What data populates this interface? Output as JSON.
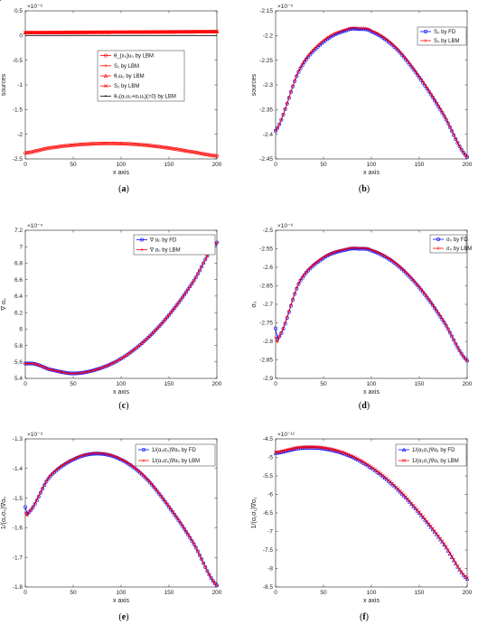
{
  "chart_data": [
    {
      "panel": "a",
      "caption": "(a)",
      "type": "line",
      "multiplier": "×10⁻⁶",
      "xlabel": "x axis",
      "ylabel": "sources",
      "xlim": [
        0,
        200
      ],
      "ylim": [
        -2.5,
        0.5
      ],
      "xticks": [
        "0",
        "50",
        "100",
        "150",
        "200"
      ],
      "yticks": [
        "-2.5",
        "-2",
        "-1.5",
        "-1",
        "-0.5",
        "0",
        "0.5"
      ],
      "legend_position": "center",
      "series": [
        {
          "name": "θ_{x₀}u₀ by LBM",
          "color": "#ff0000",
          "marker": "circle",
          "x": [
            0,
            25,
            50,
            75,
            100,
            125,
            150,
            175,
            200
          ],
          "y": [
            -2.38,
            -2.28,
            -2.22,
            -2.19,
            -2.19,
            -2.22,
            -2.28,
            -2.36,
            -2.44
          ]
        },
        {
          "name": "S₁ by LBM",
          "color": "#ff0000",
          "marker": "plus",
          "x": [
            0,
            50,
            100,
            150,
            200
          ],
          "y": [
            0.06,
            0.065,
            0.07,
            0.075,
            0.08
          ]
        },
        {
          "name": "θ₀u₀ by LBM",
          "color": "#ff0000",
          "marker": "triangle",
          "x": [
            0,
            50,
            100,
            150,
            200
          ],
          "y": [
            0.06,
            0.065,
            0.07,
            0.075,
            0.08
          ]
        },
        {
          "name": "S₂ by LBM",
          "color": "#ff0000",
          "marker": "x",
          "x": [
            0,
            50,
            100,
            150,
            200
          ],
          "y": [
            0.06,
            0.065,
            0.07,
            0.075,
            0.08
          ]
        },
        {
          "name": "θ₀(α₀u₀+α₁u₁)(=0) by LBM",
          "color": "#000000",
          "marker": "dot",
          "x": [
            0,
            200
          ],
          "y": [
            0,
            0
          ]
        }
      ]
    },
    {
      "panel": "b",
      "caption": "(b)",
      "type": "line",
      "multiplier": "×10⁻⁶",
      "xlabel": "x axis",
      "ylabel": "sources",
      "xlim": [
        0,
        200
      ],
      "ylim": [
        -2.45,
        -2.15
      ],
      "xticks": [
        "0",
        "50",
        "100",
        "150",
        "200"
      ],
      "yticks": [
        "-2.45",
        "-2.4",
        "-2.35",
        "-2.3",
        "-2.25",
        "-2.2",
        "-2.15"
      ],
      "legend_position": "top-right",
      "series": [
        {
          "name": "S₀ by FD",
          "color": "#0000ff",
          "marker": "circle",
          "x": [
            0,
            25,
            50,
            75,
            87,
            100,
            125,
            150,
            175,
            200
          ],
          "y": [
            -2.393,
            -2.27,
            -2.213,
            -2.189,
            -2.187,
            -2.192,
            -2.225,
            -2.285,
            -2.36,
            -2.446
          ]
        },
        {
          "name": "S₀ by LBM",
          "color": "#ff0000",
          "marker": "plus",
          "x": [
            0,
            25,
            50,
            75,
            87,
            100,
            125,
            150,
            175,
            200
          ],
          "y": [
            -2.393,
            -2.268,
            -2.21,
            -2.187,
            -2.185,
            -2.19,
            -2.223,
            -2.283,
            -2.358,
            -2.446
          ]
        }
      ]
    },
    {
      "panel": "c",
      "caption": "(c)",
      "type": "line",
      "multiplier": "×10⁻⁵",
      "xlabel": "x axis",
      "ylabel": "∇ α₀",
      "xlim": [
        0,
        200
      ],
      "ylim": [
        5.4,
        7.2
      ],
      "xticks": [
        "0",
        "50",
        "100",
        "150",
        "200"
      ],
      "yticks": [
        "5.4",
        "5.6",
        "5.8",
        "6",
        "6.2",
        "6.4",
        "6.6",
        "6.8",
        "7",
        "7.2"
      ],
      "legend_position": "top-right",
      "series": [
        {
          "name": "∇ α₀ by FD",
          "color": "#0000ff",
          "marker": "circle",
          "x": [
            0,
            10,
            25,
            50,
            75,
            100,
            125,
            150,
            175,
            200
          ],
          "y": [
            5.58,
            5.575,
            5.51,
            5.46,
            5.51,
            5.64,
            5.86,
            6.17,
            6.57,
            7.05
          ]
        },
        {
          "name": "∇ α₀ by LBM",
          "color": "#ff0000",
          "marker": "plus",
          "x": [
            0,
            10,
            25,
            50,
            75,
            100,
            125,
            150,
            175,
            200
          ],
          "y": [
            5.58,
            5.575,
            5.51,
            5.46,
            5.51,
            5.64,
            5.86,
            6.17,
            6.57,
            7.05
          ]
        }
      ]
    },
    {
      "panel": "d",
      "caption": "(d)",
      "type": "line",
      "multiplier": "×10⁻⁶",
      "xlabel": "x axis",
      "ylabel": "σ₀",
      "xlim": [
        0,
        200
      ],
      "ylim": [
        -2.9,
        -2.5
      ],
      "xticks": [
        "0",
        "50",
        "100",
        "150",
        "200"
      ],
      "yticks": [
        "-2.9",
        "-2.85",
        "-2.8",
        "-2.75",
        "-2.7",
        "-2.65",
        "-2.6",
        "-2.55",
        "-2.5"
      ],
      "legend_position": "top-right",
      "series": [
        {
          "name": "σ₀ by FD",
          "color": "#0000ff",
          "marker": "circle",
          "x": [
            0,
            3,
            25,
            50,
            75,
            87,
            100,
            125,
            150,
            175,
            200
          ],
          "y": [
            -2.765,
            -2.79,
            -2.64,
            -2.575,
            -2.552,
            -2.55,
            -2.555,
            -2.59,
            -2.655,
            -2.745,
            -2.852
          ]
        },
        {
          "name": "σ₀ by LBM",
          "color": "#ff0000",
          "marker": "plus",
          "x": [
            0,
            3,
            25,
            50,
            75,
            87,
            100,
            125,
            150,
            175,
            200
          ],
          "y": [
            -2.79,
            -2.79,
            -2.638,
            -2.573,
            -2.55,
            -2.548,
            -2.553,
            -2.588,
            -2.653,
            -2.743,
            -2.852
          ]
        }
      ]
    },
    {
      "panel": "e",
      "caption": "(e)",
      "type": "line",
      "multiplier": "×10⁻⁹",
      "xlabel": "x axis",
      "ylabel": "1/(α₀σ₀)∇α₀",
      "xlim": [
        0,
        200
      ],
      "ylim": [
        -1.8,
        -1.3
      ],
      "xticks": [
        "0",
        "50",
        "100",
        "150",
        "200"
      ],
      "yticks": [
        "-1.8",
        "-1.7",
        "-1.6",
        "-1.5",
        "-1.4",
        "-1.3"
      ],
      "legend_position": "top-right",
      "series": [
        {
          "name": "1/(α₀σ₀)∇α₀ by FD",
          "color": "#0000ff",
          "marker": "circle",
          "x": [
            0,
            3,
            25,
            50,
            75,
            100,
            125,
            150,
            175,
            200
          ],
          "y": [
            -1.53,
            -1.55,
            -1.43,
            -1.37,
            -1.35,
            -1.37,
            -1.43,
            -1.53,
            -1.65,
            -1.795
          ]
        },
        {
          "name": "1/(α₀σ₀)∇α₀ by LBM",
          "color": "#ff0000",
          "marker": "plus",
          "x": [
            0,
            3,
            25,
            50,
            75,
            100,
            125,
            150,
            175,
            200
          ],
          "y": [
            -1.55,
            -1.55,
            -1.428,
            -1.368,
            -1.348,
            -1.368,
            -1.428,
            -1.528,
            -1.648,
            -1.795
          ]
        }
      ]
    },
    {
      "panel": "f",
      "caption": "(f)",
      "type": "line",
      "multiplier": "×10⁻¹²",
      "xlabel": "x axis",
      "ylabel": "1/(α₁σ₁)∇α₁",
      "xlim": [
        0,
        200
      ],
      "ylim": [
        -8.5,
        -4.5
      ],
      "xticks": [
        "0",
        "50",
        "100",
        "150",
        "200"
      ],
      "yticks": [
        "-8.5",
        "-8",
        "-7.5",
        "-7",
        "-6.5",
        "-6",
        "-5.5",
        "-5",
        "-4.5"
      ],
      "legend_position": "top-right",
      "series": [
        {
          "name": "1/(α₁σ₁)∇α₁ by FD",
          "color": "#0000ff",
          "marker": "triangle",
          "x": [
            0,
            25,
            50,
            75,
            100,
            125,
            150,
            175,
            200
          ],
          "y": [
            -4.88,
            -4.75,
            -4.76,
            -4.93,
            -5.28,
            -5.8,
            -6.5,
            -7.32,
            -8.27
          ]
        },
        {
          "name": "1/(α₁σ₁)∇α₁ by LBM",
          "color": "#ff0000",
          "marker": "x",
          "x": [
            0,
            25,
            50,
            75,
            100,
            125,
            150,
            175,
            200
          ],
          "y": [
            -4.86,
            -4.73,
            -4.74,
            -4.91,
            -5.26,
            -5.78,
            -6.48,
            -7.3,
            -8.26
          ]
        }
      ]
    }
  ]
}
